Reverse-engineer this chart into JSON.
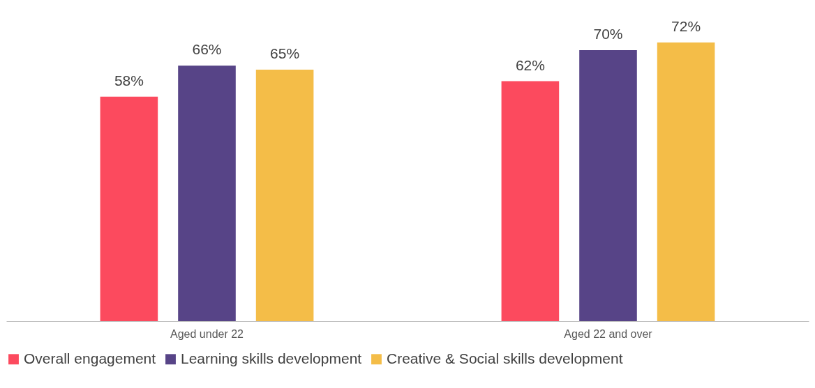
{
  "chart_data": {
    "type": "bar",
    "categories": [
      "Aged under 22",
      "Aged 22 and over"
    ],
    "series": [
      {
        "name": "Overall engagement",
        "color": "#fc4a5e",
        "values": [
          58,
          62
        ],
        "value_labels": [
          "58%",
          "62%"
        ]
      },
      {
        "name": "Learning skills development",
        "color": "#574487",
        "values": [
          66,
          70
        ],
        "value_labels": [
          "66%",
          "70%"
        ]
      },
      {
        "name": "Creative & Social skills development",
        "color": "#f4bd48",
        "values": [
          65,
          72
        ],
        "value_labels": [
          "65%",
          "72%"
        ]
      }
    ],
    "legend": "bottom",
    "grid": false
  }
}
